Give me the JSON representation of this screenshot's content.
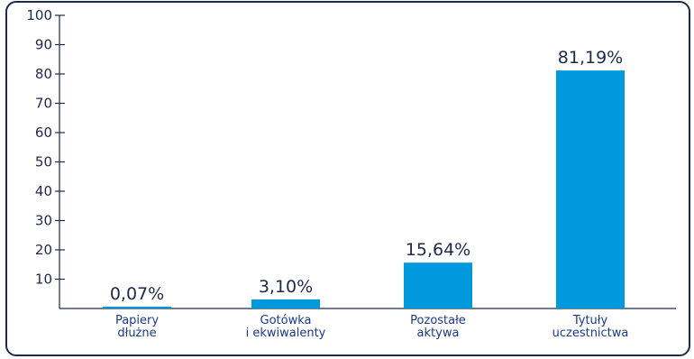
{
  "chart_data": {
    "type": "bar",
    "categories": [
      [
        "Papiery",
        "dłużne"
      ],
      [
        "Gotówka",
        "i ekwiwalenty"
      ],
      [
        "Pozostałe",
        "aktywa"
      ],
      [
        "Tytuły",
        "uczestnictwa"
      ]
    ],
    "values": [
      0.07,
      3.1,
      15.64,
      81.19
    ],
    "data_labels": [
      "0,07%",
      "3,10%",
      "15,64%",
      "81,19%"
    ],
    "yticks": [
      10,
      20,
      30,
      40,
      50,
      60,
      70,
      80,
      90,
      100
    ],
    "ylim": [
      0,
      100
    ],
    "title": "",
    "xlabel": "",
    "ylabel": "",
    "grid": false,
    "legend": "none",
    "bar_color": "#0099dd",
    "axis_color": "#1f2a4a",
    "category_label_color": "#1a3a8a"
  }
}
